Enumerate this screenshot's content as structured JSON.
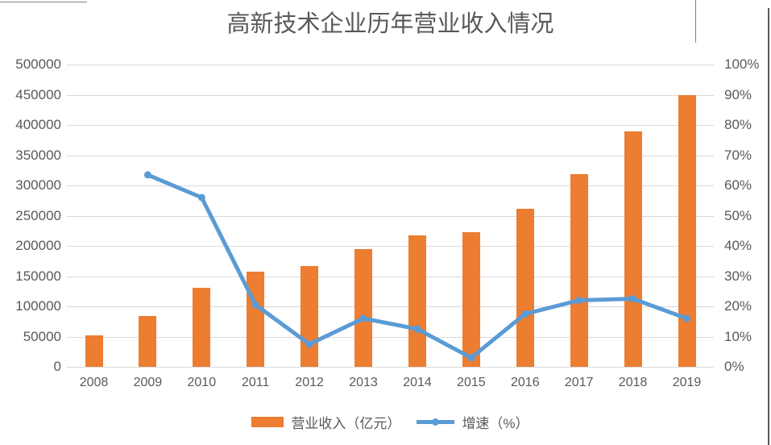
{
  "title": {
    "text": "高新技术企业历年营业收入情况"
  },
  "colors": {
    "bar": "#ED7D31",
    "line": "#5B9BD5",
    "gridline": "#D9D9D9",
    "text": "#595959"
  },
  "left_axis": {
    "ticks": [
      "500000",
      "450000",
      "400000",
      "350000",
      "300000",
      "250000",
      "200000",
      "150000",
      "100000",
      "50000",
      "0"
    ]
  },
  "right_axis": {
    "ticks": [
      "100%",
      "90%",
      "80%",
      "70%",
      "60%",
      "50%",
      "40%",
      "30%",
      "20%",
      "10%",
      "0%"
    ]
  },
  "legend": {
    "bar_label": "营业收入（亿元）",
    "line_label": "增速（%）"
  },
  "chart_data": {
    "type": "bar",
    "subtype": "combo-bar-line",
    "title": "高新技术企业历年营业收入情况",
    "categories": [
      "2008",
      "2009",
      "2010",
      "2011",
      "2012",
      "2013",
      "2014",
      "2015",
      "2016",
      "2017",
      "2018",
      "2019"
    ],
    "series": [
      {
        "name": "营业收入（亿元）",
        "type": "bar",
        "axis": "left",
        "values": [
          52000,
          84000,
          131000,
          157000,
          167000,
          195000,
          218000,
          223000,
          261000,
          319000,
          390000,
          450000
        ]
      },
      {
        "name": "增速（%）",
        "type": "line",
        "axis": "right",
        "values": [
          null,
          63.5,
          56,
          20.5,
          7.5,
          16,
          12.5,
          3,
          17.5,
          22,
          22.5,
          16
        ]
      }
    ],
    "left_ylim": [
      0,
      500000
    ],
    "left_tick_step": 50000,
    "right_ylim": [
      0,
      100
    ],
    "right_tick_step": 10,
    "xlabel": "",
    "ylabel_left": "",
    "ylabel_right": "",
    "grid": true,
    "legend_position": "bottom"
  }
}
